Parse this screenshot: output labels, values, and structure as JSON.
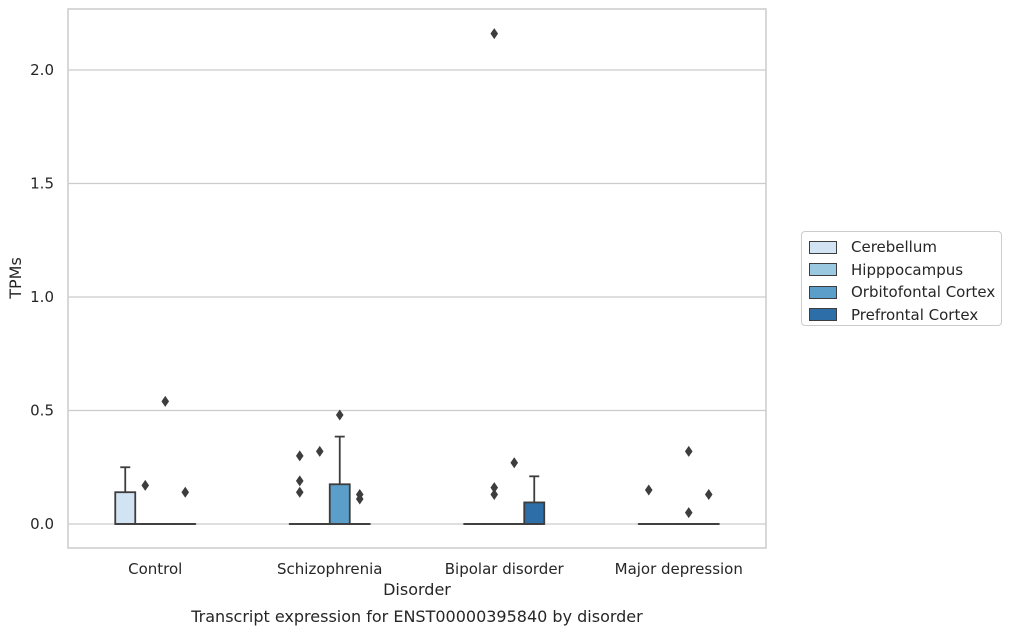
{
  "chart_data": {
    "type": "box",
    "title": "",
    "caption": "Transcript expression for ENST00000395840 by disorder",
    "xlabel": "Disorder",
    "ylabel": "TPMs",
    "ylim": [
      -0.105,
      2.27
    ],
    "yticks": [
      0.0,
      0.5,
      1.0,
      1.5,
      2.0
    ],
    "ytick_labels": [
      "0.0",
      "0.5",
      "1.0",
      "1.5",
      "2.0"
    ],
    "grid": "horizontal",
    "legend_position": "right",
    "categories": [
      "Control",
      "Schizophrenia",
      "Bipolar disorder",
      "Major depression"
    ],
    "series": [
      {
        "name": "Cerebellum",
        "color": "#d2e3f3",
        "boxes": [
          {
            "q1": 0.0,
            "median": 0.0,
            "q3": 0.14,
            "whisker_low": 0.0,
            "whisker_high": 0.25,
            "fliers": []
          },
          {
            "q1": 0.0,
            "median": 0.0,
            "q3": 0.0,
            "whisker_low": 0.0,
            "whisker_high": 0.0,
            "fliers": [
              0.14,
              0.19,
              0.3
            ]
          },
          {
            "q1": 0.0,
            "median": 0.0,
            "q3": 0.0,
            "whisker_low": 0.0,
            "whisker_high": 0.0,
            "fliers": []
          },
          {
            "q1": 0.0,
            "median": 0.0,
            "q3": 0.0,
            "whisker_low": 0.0,
            "whisker_high": 0.0,
            "fliers": [
              0.15
            ]
          }
        ]
      },
      {
        "name": "Hipppocampus",
        "color": "#9ac8e0",
        "boxes": [
          {
            "q1": 0.0,
            "median": 0.0,
            "q3": 0.0,
            "whisker_low": 0.0,
            "whisker_high": 0.0,
            "fliers": [
              0.17
            ]
          },
          {
            "q1": 0.0,
            "median": 0.0,
            "q3": 0.0,
            "whisker_low": 0.0,
            "whisker_high": 0.0,
            "fliers": [
              0.32
            ]
          },
          {
            "q1": 0.0,
            "median": 0.0,
            "q3": 0.0,
            "whisker_low": 0.0,
            "whisker_high": 0.0,
            "fliers": [
              0.13,
              0.16,
              2.16
            ]
          },
          {
            "q1": 0.0,
            "median": 0.0,
            "q3": 0.0,
            "whisker_low": 0.0,
            "whisker_high": 0.0,
            "fliers": []
          }
        ]
      },
      {
        "name": "Orbitofontal Cortex",
        "color": "#5a9ec9",
        "boxes": [
          {
            "q1": 0.0,
            "median": 0.0,
            "q3": 0.0,
            "whisker_low": 0.0,
            "whisker_high": 0.0,
            "fliers": [
              0.54
            ]
          },
          {
            "q1": 0.0,
            "median": 0.0,
            "q3": 0.175,
            "whisker_low": 0.0,
            "whisker_high": 0.385,
            "fliers": [
              0.48
            ]
          },
          {
            "q1": 0.0,
            "median": 0.0,
            "q3": 0.0,
            "whisker_low": 0.0,
            "whisker_high": 0.0,
            "fliers": [
              0.27
            ]
          },
          {
            "q1": 0.0,
            "median": 0.0,
            "q3": 0.0,
            "whisker_low": 0.0,
            "whisker_high": 0.0,
            "fliers": [
              0.05,
              0.32
            ]
          }
        ]
      },
      {
        "name": "Prefrontal Cortex",
        "color": "#2d6ea8",
        "boxes": [
          {
            "q1": 0.0,
            "median": 0.0,
            "q3": 0.0,
            "whisker_low": 0.0,
            "whisker_high": 0.0,
            "fliers": [
              0.14
            ]
          },
          {
            "q1": 0.0,
            "median": 0.0,
            "q3": 0.0,
            "whisker_low": 0.0,
            "whisker_high": 0.0,
            "fliers": [
              0.11,
              0.13
            ]
          },
          {
            "q1": 0.0,
            "median": 0.0,
            "q3": 0.095,
            "whisker_low": 0.0,
            "whisker_high": 0.21,
            "fliers": []
          },
          {
            "q1": 0.0,
            "median": 0.0,
            "q3": 0.0,
            "whisker_low": 0.0,
            "whisker_high": 0.0,
            "fliers": [
              0.13
            ]
          }
        ]
      }
    ]
  }
}
